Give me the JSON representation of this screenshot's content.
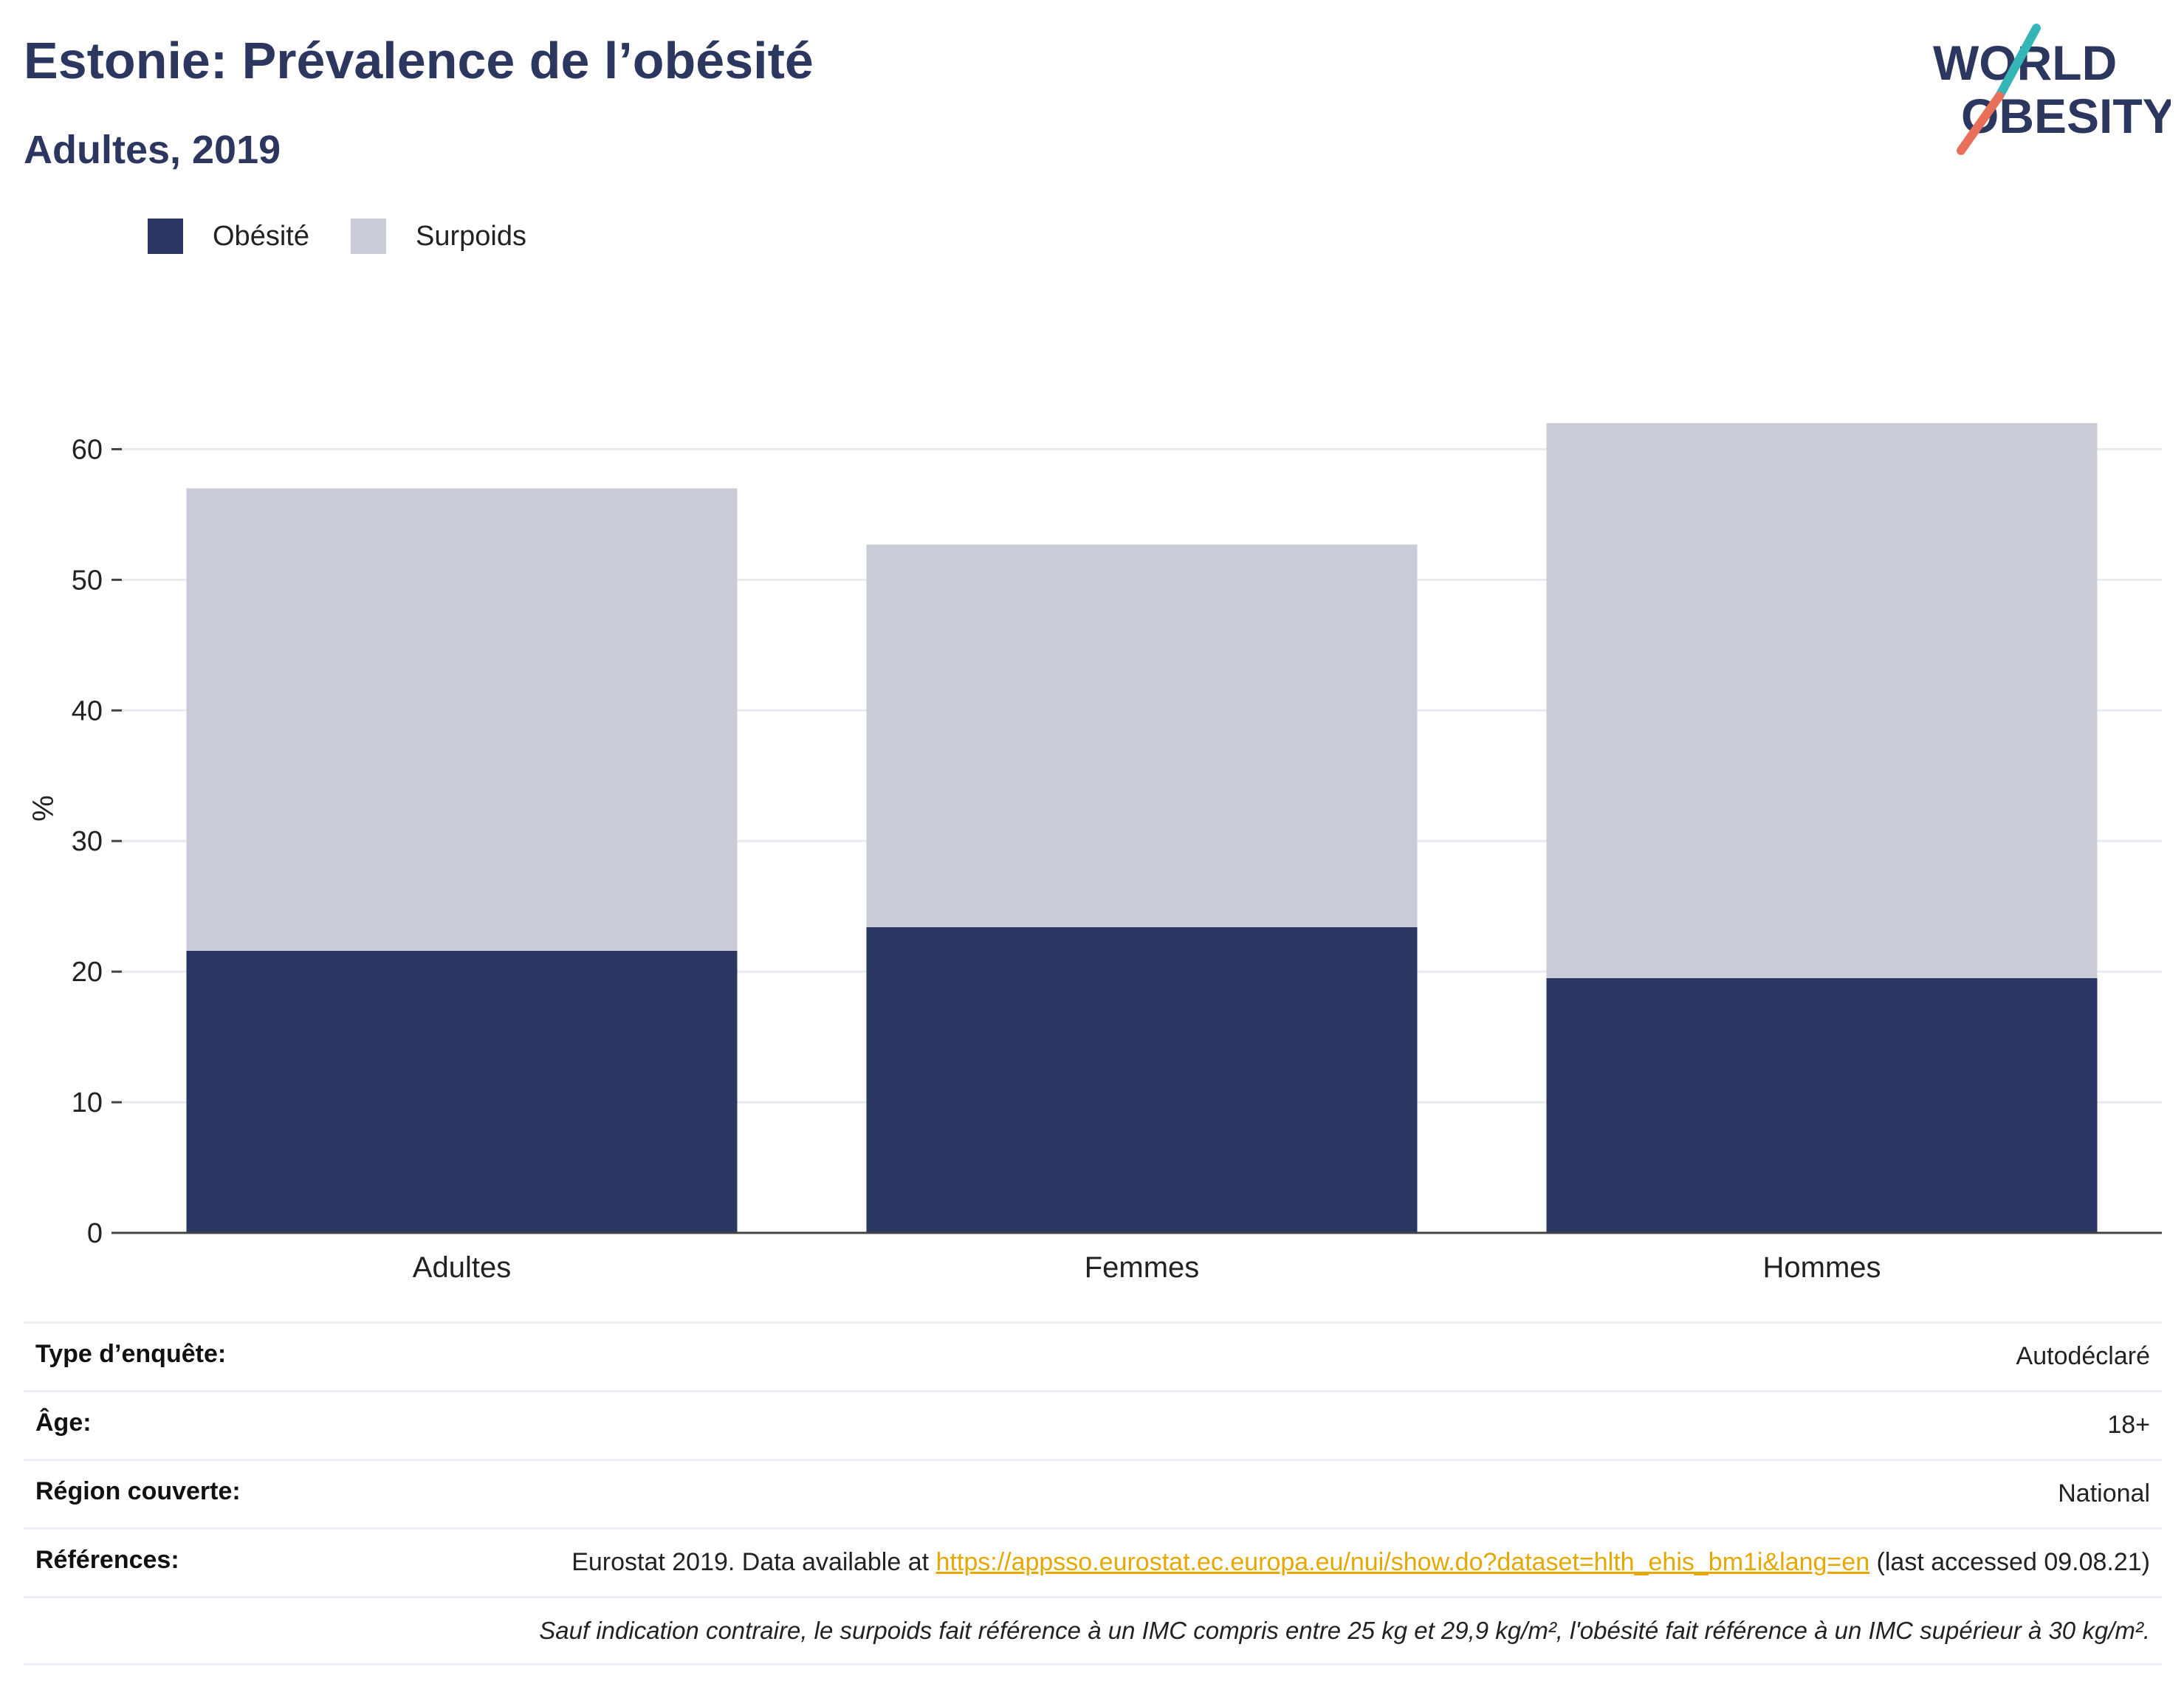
{
  "header": {
    "title": "Estonie: Prévalence de l’obésité",
    "subtitle": "Adultes, 2019"
  },
  "logo": {
    "line1": "WORLD",
    "line2": "OBESITY"
  },
  "legend": {
    "items": [
      {
        "label": "Obésité",
        "color": "#2b3763"
      },
      {
        "label": "Surpoids",
        "color": "#c9ccd7"
      }
    ]
  },
  "chart_data": {
    "type": "bar",
    "stacked": true,
    "categories": [
      "Adultes",
      "Femmes",
      "Hommes"
    ],
    "series": [
      {
        "name": "Obésité",
        "values": [
          21.6,
          23.4,
          19.5
        ],
        "color": "#2b3763"
      },
      {
        "name": "Surpoids",
        "values": [
          35.4,
          29.3,
          42.5
        ],
        "color": "#c9ccd7"
      }
    ],
    "ylabel": "%",
    "xlabel": "",
    "ylim": [
      0,
      65
    ],
    "yticks": [
      0,
      10,
      20,
      30,
      40,
      50,
      60
    ],
    "grid": true,
    "legend_position": "top-left"
  },
  "info": {
    "survey_type": {
      "label": "Type d’enquête:",
      "value": "Autodéclaré"
    },
    "age": {
      "label": "Âge:",
      "value": "18+"
    },
    "region": {
      "label": "Région couverte:",
      "value": "National"
    },
    "references": {
      "label": "Références:",
      "prefix": "Eurostat 2019. Data available at ",
      "link": "https://appsso.eurostat.ec.europa.eu/nui/show.do?dataset=hlth_ehis_bm1i&lang=en",
      "suffix": " (last accessed 09.08.21)"
    },
    "note": "Sauf indication contraire, le surpoids fait référence à un IMC compris entre 25 kg et 29,9 kg/m², l'obésité fait référence à un IMC supérieur à 30 kg/m²."
  }
}
